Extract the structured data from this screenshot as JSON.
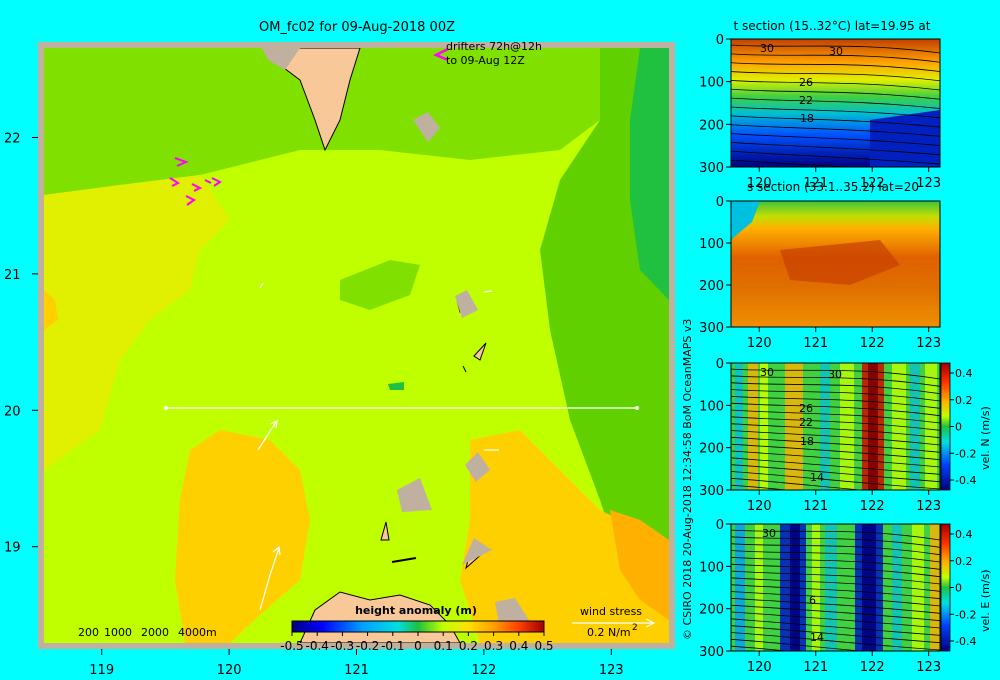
{
  "main_title": "OM_fc02 for 09-Aug-2018 00Z",
  "credit": "© CSIRO 2018    20-Aug-2018 12:34:58 BoM OceanMAPS v3",
  "drifters_label": [
    "drifters 72h@12h",
    "to 09-Aug 12Z"
  ],
  "depth_legend": [
    "200",
    "1000",
    "2000",
    "4000m"
  ],
  "wind_stress": {
    "title": "wind stress",
    "value": "0.2 N/m",
    "exp": "2"
  },
  "colors": {
    "background": "#00ffff",
    "land": "#f8c898",
    "shelf": "#c0b0a0",
    "drifter": "#ff00ff",
    "section_line": "#ffffff"
  },
  "chart_data": [
    {
      "type": "heatmap",
      "name": "height-anomaly-map",
      "title": "OM_fc02 for 09-Aug-2018 00Z",
      "x_ticks": [
        "119",
        "120",
        "121",
        "122",
        "123"
      ],
      "x_values": [
        119,
        120,
        121,
        122,
        123
      ],
      "xlim": [
        118.5,
        123.5
      ],
      "y_ticks": [
        "22",
        "21",
        "20",
        "19"
      ],
      "y_values": [
        22,
        21,
        20,
        19
      ],
      "ylim": [
        18.25,
        22.7
      ],
      "colorbar": {
        "label": "height anomaly  (m)",
        "ticks": [
          "-0.5",
          "-0.4",
          "-0.3",
          "-0.2",
          "-0.1",
          "0",
          "0.1",
          "0.2",
          "0.3",
          "0.4",
          "0.5"
        ],
        "range": [
          -0.5,
          0.5
        ]
      },
      "section_line": {
        "lat": 20,
        "lon_range": [
          119.5,
          123.2
        ]
      },
      "field_regions": [
        {
          "region": "north-west",
          "value": 0.05
        },
        {
          "region": "centre",
          "value": 0.12
        },
        {
          "region": "south-west",
          "value": 0.25
        },
        {
          "region": "south-east",
          "value": 0.25
        },
        {
          "region": "east",
          "value": -0.02
        },
        {
          "region": "far-east",
          "value": -0.1
        }
      ]
    },
    {
      "type": "heatmap",
      "name": "t-section",
      "title": "t section (15..32°C) lat=19.95 at",
      "x_ticks": [
        "120",
        "121",
        "122",
        "123"
      ],
      "x_values": [
        120,
        121,
        122,
        123
      ],
      "xlim": [
        119.5,
        123.2
      ],
      "y_ticks": [
        "0",
        "100",
        "200",
        "300"
      ],
      "y_values": [
        0,
        100,
        200,
        300
      ],
      "ylim": [
        0,
        300
      ],
      "contour_labels": [
        "30",
        "30",
        "26",
        "22",
        "18"
      ]
    },
    {
      "type": "heatmap",
      "name": "s-section",
      "title": "s section (33.1..35.2) lat=20",
      "x_ticks": [
        "120",
        "121",
        "122",
        "123"
      ],
      "x_values": [
        120,
        121,
        122,
        123
      ],
      "xlim": [
        119.5,
        123.2
      ],
      "y_ticks": [
        "0",
        "100",
        "200",
        "300"
      ],
      "y_values": [
        0,
        100,
        200,
        300
      ],
      "ylim": [
        0,
        300
      ]
    },
    {
      "type": "heatmap",
      "name": "vel-n-section",
      "title": "",
      "x_ticks": [
        "120",
        "121",
        "122",
        "123"
      ],
      "x_values": [
        120,
        121,
        122,
        123
      ],
      "xlim": [
        119.5,
        123.2
      ],
      "y_ticks": [
        "0",
        "100",
        "200",
        "300"
      ],
      "y_values": [
        0,
        100,
        200,
        300
      ],
      "ylim": [
        0,
        300
      ],
      "contour_labels": [
        "30",
        "30",
        "26",
        "22",
        "18",
        "14"
      ],
      "colorbar": {
        "label": "vel. N (m/s)",
        "ticks": [
          "0.4",
          "0.2",
          "0",
          "-0.2",
          "-0.4"
        ],
        "range": [
          -0.4,
          0.4
        ]
      }
    },
    {
      "type": "heatmap",
      "name": "vel-e-section",
      "title": "",
      "x_ticks": [
        "120",
        "121",
        "122",
        "123"
      ],
      "x_values": [
        120,
        121,
        122,
        123
      ],
      "xlim": [
        119.5,
        123.2
      ],
      "y_ticks": [
        "0",
        "100",
        "200",
        "300"
      ],
      "y_values": [
        0,
        100,
        200,
        300
      ],
      "ylim": [
        0,
        300
      ],
      "contour_labels": [
        "30",
        "6",
        "14"
      ],
      "colorbar": {
        "label": "vel. E (m/s)",
        "ticks": [
          "0.4",
          "0.2",
          "0",
          "-0.2",
          "-0.4"
        ],
        "range": [
          -0.4,
          0.4
        ]
      }
    }
  ]
}
